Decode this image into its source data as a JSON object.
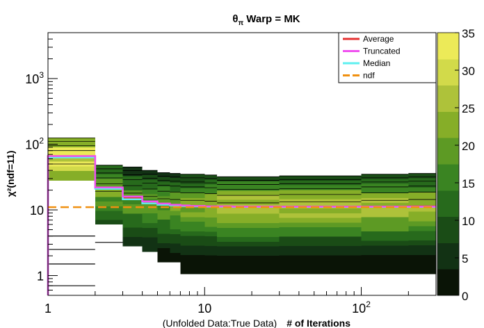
{
  "chart_data": {
    "type": "heatmap",
    "title_prefix": "θ",
    "title_sub": "π",
    "title_rest": " Warp = MK",
    "xlabel_note": "(Unfolded Data:True Data)",
    "xlabel": "# of Iterations",
    "ylabel": "χ²(ndf=11)",
    "x_scale": "log",
    "y_scale": "log",
    "xlim": [
      1,
      300
    ],
    "ylim": [
      0.5,
      5000
    ],
    "x_tick_labels": [
      {
        "value": 1,
        "label": "1"
      },
      {
        "value": 10,
        "label": "10"
      },
      {
        "value": 100,
        "label": "10",
        "exp": "2"
      }
    ],
    "y_tick_labels": [
      {
        "value": 1,
        "label": "1"
      },
      {
        "value": 10,
        "label": "10"
      },
      {
        "value": 100,
        "label": "10",
        "exp": "2"
      },
      {
        "value": 1000,
        "label": "10",
        "exp": "3"
      }
    ],
    "z_range": [
      0,
      35
    ],
    "z_ticks": [
      "0",
      "5",
      "10",
      "15",
      "20",
      "25",
      "30",
      "35"
    ],
    "colormap": [
      "#0a1406",
      "#123214",
      "#1a4c16",
      "#276a1c",
      "#3a8422",
      "#5d9a24",
      "#86ae28",
      "#aec23a",
      "#d2da4a",
      "#ecea58"
    ],
    "legend": {
      "placement": "top-right",
      "entries": [
        {
          "label": "Average",
          "color": "#e53030"
        },
        {
          "label": "Truncated",
          "color": "#f050f0"
        },
        {
          "label": "Median",
          "color": "#5ef0f0"
        },
        {
          "label": "ndf",
          "color": "#f09010",
          "dashed": true
        }
      ]
    },
    "ndf_value": 11,
    "lines": {
      "x": [
        1,
        2,
        3,
        4,
        5,
        6,
        7,
        8,
        10,
        15,
        20,
        30,
        50,
        100,
        200,
        300
      ],
      "average": [
        66,
        22,
        15,
        13,
        12.3,
        11.9,
        11.6,
        11.4,
        11.3,
        11.2,
        11.2,
        11.2,
        11.2,
        11.2,
        11.3,
        11.3
      ],
      "truncated": [
        66,
        22,
        16,
        13.5,
        12.5,
        12,
        11.7,
        11.5,
        11.3,
        11.2,
        11.2,
        11.2,
        11.2,
        11.2,
        11.2,
        11.2
      ],
      "median": [
        63,
        21,
        14.5,
        12.6,
        12,
        11.7,
        11.5,
        11.3,
        11.2,
        11.1,
        11.1,
        11.1,
        11.1,
        11.1,
        11.1,
        11.1
      ]
    },
    "columns": [
      {
        "x0": 1,
        "x1": 2,
        "y_lo": 28,
        "y_hi": 125,
        "peak": 66,
        "z_peak": 34,
        "outliers": [
          4,
          2.5,
          1.5,
          0.7
        ]
      },
      {
        "x0": 2,
        "x1": 3,
        "y_lo": 6,
        "y_hi": 48,
        "peak": 20,
        "z_peak": 22,
        "outliers": [
          3.2
        ]
      },
      {
        "x0": 3,
        "x1": 4,
        "y_lo": 2.8,
        "y_hi": 45,
        "peak": 14,
        "z_peak": 20,
        "outliers": []
      },
      {
        "x0": 4,
        "x1": 5,
        "y_lo": 2.3,
        "y_hi": 40,
        "peak": 12.5,
        "z_peak": 20,
        "outliers": []
      },
      {
        "x0": 5,
        "x1": 6,
        "y_lo": 1.6,
        "y_hi": 37,
        "peak": 12,
        "z_peak": 21,
        "outliers": []
      },
      {
        "x0": 6,
        "x1": 7,
        "y_lo": 1.6,
        "y_hi": 36,
        "peak": 11.7,
        "z_peak": 22,
        "outliers": []
      },
      {
        "x0": 7,
        "x1": 10,
        "y_lo": 1.05,
        "y_hi": 35,
        "peak": 11.4,
        "z_peak": 24,
        "outliers": []
      },
      {
        "x0": 10,
        "x1": 12,
        "y_lo": 1.05,
        "y_hi": 34,
        "peak": 11.3,
        "z_peak": 25,
        "outliers": []
      },
      {
        "x0": 12,
        "x1": 30,
        "y_lo": 1.05,
        "y_hi": 32,
        "peak": 11.2,
        "z_peak": 28,
        "outliers": []
      },
      {
        "x0": 30,
        "x1": 100,
        "y_lo": 1.05,
        "y_hi": 33,
        "peak": 11.2,
        "z_peak": 28,
        "outliers": []
      },
      {
        "x0": 100,
        "x1": 200,
        "y_lo": 1.05,
        "y_hi": 35,
        "peak": 11.2,
        "z_peak": 27,
        "outliers": []
      },
      {
        "x0": 200,
        "x1": 300,
        "y_lo": 1.05,
        "y_hi": 36,
        "peak": 11.2,
        "z_peak": 26,
        "outliers": []
      }
    ]
  }
}
